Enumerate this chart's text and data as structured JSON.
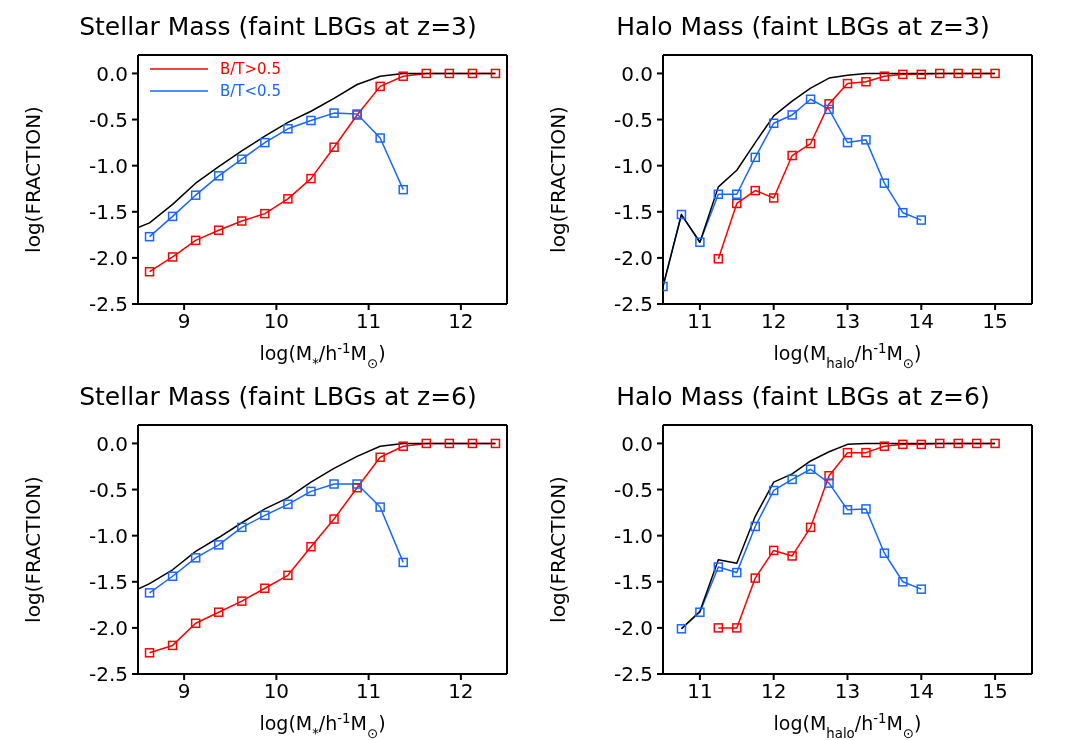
{
  "chart_data": [
    {
      "type": "line",
      "title": "Stellar Mass (faint LBGs at z=3)",
      "xlabel": "log(M$_{*}$/h$^{-1}$M$_{⊙}$)",
      "ylabel": "log(FRACTION)",
      "xlim": [
        8.5,
        12.5
      ],
      "xticks": [
        9,
        10,
        11,
        12
      ],
      "ylim": [
        -2.5,
        0.2
      ],
      "yticks": [
        {
          "value": 0,
          "label": "0.0"
        },
        {
          "value": -0.5,
          "label": "-0.5"
        },
        {
          "value": -1,
          "label": "-1.0"
        },
        {
          "value": -1.5,
          "label": "-1.5"
        },
        {
          "value": -2,
          "label": "-2.0"
        },
        {
          "value": -2.5,
          "label": "-2.5"
        }
      ],
      "legend": "top left",
      "marker": "square",
      "series": [
        {
          "name": "B/T>0.5",
          "color": "#ff0000",
          "x": [
            8.625,
            8.875,
            9.125,
            9.375,
            9.625,
            9.875,
            10.125,
            10.375,
            10.625,
            10.875,
            11.125,
            11.375,
            11.625,
            11.875,
            12.125,
            12.375
          ],
          "values": [
            -2.15,
            -1.99,
            -1.81,
            -1.7,
            -1.6,
            -1.52,
            -1.36,
            -1.14,
            -0.8,
            -0.45,
            -0.14,
            -0.03,
            0,
            0,
            0,
            0
          ]
        },
        {
          "name": "B/T<0.5",
          "color": "#1a66ff",
          "x": [
            8.625,
            8.875,
            9.125,
            9.375,
            9.625,
            9.875,
            10.125,
            10.375,
            10.625,
            10.875,
            11.125,
            11.375
          ],
          "values": [
            -1.77,
            -1.55,
            -1.32,
            -1.11,
            -0.93,
            -0.75,
            -0.6,
            -0.51,
            -0.43,
            -0.44,
            -0.7,
            -1.26
          ]
        },
        {
          "color": "#000000",
          "marker": "none",
          "x": [
            8.5,
            8.625,
            8.875,
            9.125,
            9.375,
            9.625,
            9.875,
            10.125,
            10.375,
            10.625,
            10.875,
            11.125,
            11.375,
            11.625,
            11.875,
            12.125,
            12.375
          ],
          "values": [
            -1.67,
            -1.62,
            -1.42,
            -1.19,
            -1.01,
            -0.84,
            -0.68,
            -0.53,
            -0.41,
            -0.27,
            -0.12,
            -0.03,
            0,
            0,
            0,
            0,
            0
          ]
        }
      ]
    },
    {
      "type": "line",
      "title": "Halo Mass (faint LBGs at z=3)",
      "xlabel": "log(M$_{halo}$/h$^{-1}$M$_{⊙}$)",
      "ylabel": "log(FRACTION)",
      "xlim": [
        10.5,
        15.5
      ],
      "xticks": [
        11,
        12,
        13,
        14,
        15
      ],
      "ylim": [
        -2.5,
        0.2
      ],
      "yticks": [
        {
          "value": 0,
          "label": "0.0"
        },
        {
          "value": -0.5,
          "label": "-0.5"
        },
        {
          "value": -1,
          "label": "-1.0"
        },
        {
          "value": -1.5,
          "label": "-1.5"
        },
        {
          "value": -2,
          "label": "-2.0"
        },
        {
          "value": -2.5,
          "label": "-2.5"
        }
      ],
      "marker": "square",
      "series": [
        {
          "color": "#ff0000",
          "x": [
            11.25,
            11.5,
            11.75,
            12,
            12.25,
            12.5,
            12.75,
            13,
            13.25,
            13.5,
            13.75,
            14,
            14.25,
            14.5,
            14.75,
            15
          ],
          "values": [
            -2.01,
            -1.41,
            -1.27,
            -1.35,
            -0.89,
            -0.76,
            -0.33,
            -0.11,
            -0.09,
            -0.03,
            -0.01,
            -0.01,
            0,
            0,
            0,
            0
          ]
        },
        {
          "color": "#1a66ff",
          "x": [
            10.5,
            10.75,
            11,
            11.25,
            11.5,
            11.75,
            12,
            12.25,
            12.5,
            12.75,
            13,
            13.25,
            13.5,
            13.75,
            14
          ],
          "values": [
            -2.31,
            -1.53,
            -1.83,
            -1.31,
            -1.31,
            -0.91,
            -0.54,
            -0.45,
            -0.28,
            -0.39,
            -0.75,
            -0.72,
            -1.19,
            -1.51,
            -1.59
          ]
        },
        {
          "color": "#000000",
          "marker": "none",
          "x": [
            10.5,
            10.75,
            11,
            11.25,
            11.5,
            11.75,
            12,
            12.25,
            12.5,
            12.75,
            13,
            13.25,
            13.5,
            13.75,
            14,
            14.25,
            14.5,
            14.75,
            15
          ],
          "values": [
            -2.31,
            -1.53,
            -1.83,
            -1.23,
            -1.05,
            -0.75,
            -0.46,
            -0.3,
            -0.16,
            -0.05,
            -0.02,
            0,
            0,
            0,
            0,
            0,
            0,
            0,
            0
          ]
        }
      ]
    },
    {
      "type": "line",
      "title": "Stellar Mass (faint LBGs at z=6)",
      "xlabel": "log(M$_{*}$/h$^{-1}$M$_{⊙}$)",
      "ylabel": "log(FRACTION)",
      "xlim": [
        8.5,
        12.5
      ],
      "xticks": [
        9,
        10,
        11,
        12
      ],
      "ylim": [
        -2.5,
        0.2
      ],
      "yticks": [
        {
          "value": 0,
          "label": "0.0"
        },
        {
          "value": -0.5,
          "label": "-0.5"
        },
        {
          "value": -1,
          "label": "-1.0"
        },
        {
          "value": -1.5,
          "label": "-1.5"
        },
        {
          "value": -2,
          "label": "-2.0"
        },
        {
          "value": -2.5,
          "label": "-2.5"
        }
      ],
      "marker": "square",
      "series": [
        {
          "color": "#ff0000",
          "x": [
            8.625,
            8.875,
            9.125,
            9.375,
            9.625,
            9.875,
            10.125,
            10.375,
            10.625,
            10.875,
            11.125,
            11.375,
            11.625,
            11.875,
            12.125,
            12.375
          ],
          "values": [
            -2.27,
            -2.19,
            -1.95,
            -1.83,
            -1.71,
            -1.57,
            -1.43,
            -1.12,
            -0.82,
            -0.48,
            -0.15,
            -0.03,
            0,
            0,
            0,
            0
          ]
        },
        {
          "color": "#1a66ff",
          "x": [
            8.625,
            8.875,
            9.125,
            9.375,
            9.625,
            9.875,
            10.125,
            10.375,
            10.625,
            10.875,
            11.125,
            11.375
          ],
          "values": [
            -1.62,
            -1.44,
            -1.24,
            -1.1,
            -0.91,
            -0.78,
            -0.66,
            -0.52,
            -0.44,
            -0.44,
            -0.69,
            -1.29
          ]
        },
        {
          "color": "#000000",
          "marker": "none",
          "x": [
            8.5,
            8.625,
            8.875,
            9.125,
            9.375,
            9.625,
            9.875,
            10.125,
            10.375,
            10.625,
            10.875,
            11.125,
            11.375,
            11.625,
            11.875,
            12.125,
            12.375
          ],
          "values": [
            -1.58,
            -1.52,
            -1.37,
            -1.17,
            -1.02,
            -0.86,
            -0.71,
            -0.59,
            -0.42,
            -0.27,
            -0.14,
            -0.03,
            0,
            0,
            0,
            0,
            0
          ]
        }
      ]
    },
    {
      "type": "line",
      "title": "Halo Mass (faint LBGs at z=6)",
      "xlabel": "log(M$_{halo}$/h$^{-1}$M$_{⊙}$)",
      "ylabel": "log(FRACTION)",
      "xlim": [
        10.5,
        15.5
      ],
      "xticks": [
        11,
        12,
        13,
        14,
        15
      ],
      "ylim": [
        -2.5,
        0.2
      ],
      "yticks": [
        {
          "value": 0,
          "label": "0.0"
        },
        {
          "value": -0.5,
          "label": "-0.5"
        },
        {
          "value": -1,
          "label": "-1.0"
        },
        {
          "value": -1.5,
          "label": "-1.5"
        },
        {
          "value": -2,
          "label": "-2.0"
        },
        {
          "value": -2.5,
          "label": "-2.5"
        }
      ],
      "marker": "square",
      "series": [
        {
          "color": "#ff0000",
          "x": [
            11.25,
            11.5,
            11.75,
            12,
            12.25,
            12.5,
            12.75,
            13,
            13.25,
            13.5,
            13.75,
            14,
            14.25,
            14.5,
            14.75,
            15
          ],
          "values": [
            -2,
            -2,
            -1.46,
            -1.16,
            -1.22,
            -0.91,
            -0.35,
            -0.1,
            -0.1,
            -0.03,
            -0.01,
            -0.01,
            0,
            0,
            0,
            0
          ]
        },
        {
          "color": "#1a66ff",
          "x": [
            10.75,
            11,
            11.25,
            11.5,
            11.75,
            12,
            12.25,
            12.5,
            12.75,
            13,
            13.25,
            13.5,
            13.75,
            14
          ],
          "values": [
            -2.01,
            -1.83,
            -1.34,
            -1.4,
            -0.9,
            -0.51,
            -0.39,
            -0.28,
            -0.43,
            -0.72,
            -0.71,
            -1.19,
            -1.5,
            -1.58
          ]
        },
        {
          "color": "#000000",
          "marker": "none",
          "x": [
            10.75,
            11,
            11.25,
            11.5,
            11.75,
            12,
            12.25,
            12.5,
            12.75,
            13,
            13.25,
            13.5,
            13.75,
            14,
            14.25,
            14.5,
            14.75,
            15
          ],
          "values": [
            -2.01,
            -1.82,
            -1.26,
            -1.3,
            -0.79,
            -0.42,
            -0.33,
            -0.19,
            -0.09,
            -0.01,
            0,
            0,
            0,
            0,
            0,
            0,
            0,
            0
          ]
        }
      ]
    }
  ]
}
